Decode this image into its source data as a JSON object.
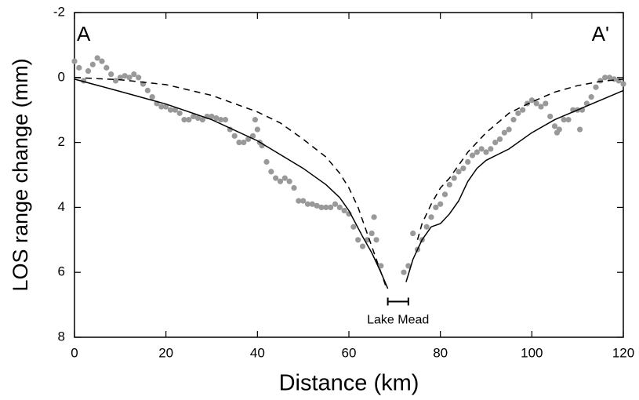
{
  "chart_data": {
    "type": "line",
    "xlabel": "Distance (km)",
    "ylabel": "LOS range change (mm)",
    "xlim": [
      0,
      120
    ],
    "xticks": [
      0,
      20,
      40,
      60,
      80,
      100,
      120
    ],
    "ylim": [
      -2,
      8
    ],
    "yticks": [
      -2,
      0,
      2,
      4,
      6,
      8
    ],
    "y_inverted": true,
    "annotations": [
      {
        "text": "A",
        "x": 2,
        "y": -1.3
      },
      {
        "text": "A'",
        "x": 115,
        "y": -1.3
      },
      {
        "text": "Lake Mead",
        "x": [
          68.5,
          73
        ],
        "y": 6.9
      }
    ],
    "series": [
      {
        "style": "markers",
        "color": "#999999",
        "x": [
          0,
          1,
          2,
          3,
          4,
          5,
          6,
          7,
          8,
          9,
          10,
          11,
          12,
          13,
          14,
          15,
          16,
          17,
          18,
          19,
          20,
          21,
          22,
          23,
          24,
          25,
          26,
          27,
          28,
          29,
          30,
          31,
          32,
          33,
          34,
          35,
          36,
          37,
          38,
          39,
          39.5,
          40,
          40.5,
          41,
          42,
          43,
          44,
          45,
          46,
          47,
          48,
          49,
          50,
          51,
          52,
          53,
          54,
          55,
          56,
          57,
          58,
          59,
          60,
          61,
          62,
          63,
          64,
          65,
          65.5,
          66,
          67,
          72,
          73,
          74,
          75,
          76,
          77,
          78,
          79,
          80,
          81,
          82,
          83,
          84,
          85,
          86,
          87,
          88,
          89,
          90,
          91,
          92,
          93,
          94,
          95,
          96,
          97,
          98,
          99,
          100,
          101,
          102,
          103,
          104,
          105,
          105.5,
          106,
          107,
          108,
          109,
          110,
          110.5,
          111,
          112,
          113,
          114,
          115,
          116,
          117,
          118,
          119,
          120
        ],
        "values": [
          -0.5,
          -0.3,
          0.1,
          -0.2,
          -0.4,
          -0.6,
          -0.5,
          -0.3,
          -0.1,
          0.1,
          0.0,
          -0.05,
          0.0,
          -0.1,
          0.0,
          0.2,
          0.4,
          0.6,
          0.8,
          0.9,
          0.9,
          1.0,
          1.0,
          1.1,
          1.3,
          1.3,
          1.2,
          1.25,
          1.3,
          1.2,
          1.2,
          1.25,
          1.3,
          1.3,
          1.6,
          1.8,
          2.0,
          2.0,
          1.9,
          1.8,
          1.3,
          1.6,
          2.0,
          2.1,
          2.6,
          2.9,
          3.1,
          3.2,
          3.1,
          3.2,
          3.4,
          3.8,
          3.8,
          3.9,
          3.9,
          3.95,
          4.0,
          4.0,
          4.0,
          3.9,
          4.0,
          4.1,
          4.2,
          4.6,
          5.0,
          5.2,
          5.0,
          4.8,
          4.3,
          5.0,
          5.8,
          6.0,
          5.8,
          4.8,
          5.3,
          5.0,
          4.6,
          4.3,
          4.0,
          3.9,
          3.6,
          3.3,
          3.1,
          2.9,
          2.8,
          2.6,
          2.4,
          2.3,
          2.2,
          2.3,
          2.2,
          2.0,
          1.9,
          1.7,
          1.6,
          1.3,
          1.1,
          1.0,
          0.8,
          0.7,
          0.8,
          0.9,
          0.8,
          1.2,
          1.5,
          1.7,
          1.6,
          1.3,
          1.3,
          1.0,
          1.0,
          1.6,
          1.0,
          0.8,
          0.6,
          0.3,
          0.1,
          0.0,
          0.0,
          0.05,
          0.1,
          0.2
        ]
      },
      {
        "style": "solid",
        "color": "#000000",
        "x": [
          0,
          10,
          20,
          30,
          40,
          50,
          55,
          58,
          60,
          63,
          65,
          67,
          68.5,
          null,
          72.5,
          74,
          76,
          78,
          80,
          82,
          84,
          86,
          88,
          90,
          95,
          100,
          105,
          110,
          115,
          120
        ],
        "values": [
          0.05,
          0.43,
          0.82,
          1.3,
          1.95,
          2.8,
          3.3,
          3.7,
          4.1,
          4.9,
          5.4,
          6.0,
          6.5,
          null,
          6.3,
          5.6,
          5.0,
          4.6,
          4.5,
          4.2,
          3.8,
          3.2,
          2.8,
          2.55,
          2.2,
          1.7,
          1.3,
          1.0,
          0.7,
          0.4
        ]
      },
      {
        "style": "dashed",
        "color": "#000000",
        "x": [
          0,
          10,
          20,
          30,
          40,
          45,
          50,
          55,
          58,
          60,
          62,
          64,
          66,
          68,
          null,
          75,
          76,
          78,
          80,
          82,
          84,
          86,
          88,
          90,
          95,
          100,
          105,
          110,
          115,
          120
        ],
        "values": [
          0.0,
          0.07,
          0.22,
          0.55,
          1.06,
          1.4,
          1.9,
          2.45,
          2.95,
          3.4,
          4.0,
          4.8,
          5.6,
          6.4,
          null,
          5.0,
          4.5,
          3.9,
          3.4,
          3.1,
          2.7,
          2.3,
          2.0,
          1.7,
          1.1,
          0.75,
          0.45,
          0.25,
          0.12,
          0.05
        ]
      }
    ]
  }
}
